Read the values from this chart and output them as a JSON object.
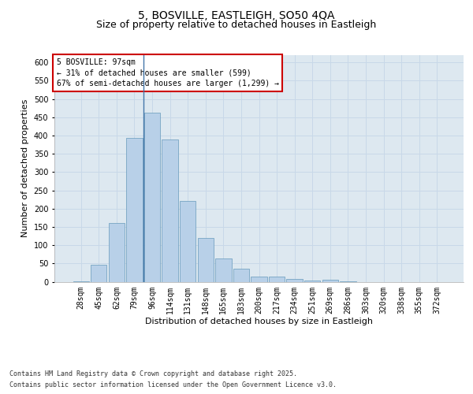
{
  "title": "5, BOSVILLE, EASTLEIGH, SO50 4QA",
  "subtitle": "Size of property relative to detached houses in Eastleigh",
  "xlabel": "Distribution of detached houses by size in Eastleigh",
  "ylabel": "Number of detached properties",
  "categories": [
    "28sqm",
    "45sqm",
    "62sqm",
    "79sqm",
    "96sqm",
    "114sqm",
    "131sqm",
    "148sqm",
    "165sqm",
    "183sqm",
    "200sqm",
    "217sqm",
    "234sqm",
    "251sqm",
    "269sqm",
    "286sqm",
    "303sqm",
    "320sqm",
    "338sqm",
    "355sqm",
    "372sqm"
  ],
  "values": [
    2,
    47,
    160,
    393,
    463,
    390,
    220,
    120,
    63,
    35,
    13,
    13,
    8,
    4,
    5,
    2,
    0,
    0,
    0,
    0,
    0
  ],
  "bar_color": "#b8d0e8",
  "bar_edge_color": "#6699bb",
  "annotation_text_line1": "5 BOSVILLE: 97sqm",
  "annotation_text_line2": "← 31% of detached houses are smaller (599)",
  "annotation_text_line3": "67% of semi-detached houses are larger (1,299) →",
  "annotation_box_facecolor": "#ffffff",
  "annotation_box_edgecolor": "#cc0000",
  "ylim": [
    0,
    620
  ],
  "yticks": [
    0,
    50,
    100,
    150,
    200,
    250,
    300,
    350,
    400,
    450,
    500,
    550,
    600
  ],
  "grid_color": "#c8d8e8",
  "background_color": "#dde8f0",
  "title_fontsize": 10,
  "subtitle_fontsize": 9,
  "xlabel_fontsize": 8,
  "ylabel_fontsize": 8,
  "tick_fontsize": 7,
  "annot_fontsize": 7,
  "footer_line1": "Contains HM Land Registry data © Crown copyright and database right 2025.",
  "footer_line2": "Contains public sector information licensed under the Open Government Licence v3.0."
}
